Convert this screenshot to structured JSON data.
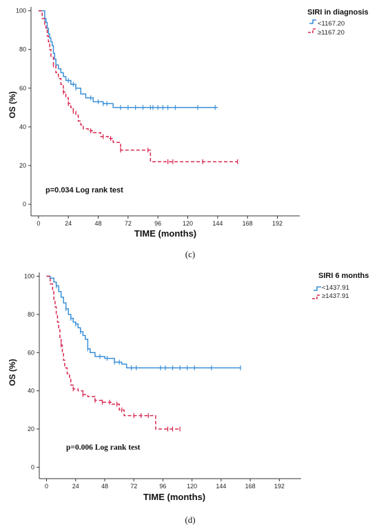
{
  "chart_data": [
    {
      "type": "line",
      "panel_label": "(c)",
      "xlabel": "TIME (months)",
      "ylabel": "OS (%)",
      "xticks": [
        "0",
        "24",
        "48",
        "72",
        "96",
        "120",
        "144",
        "168",
        "192"
      ],
      "yticks": [
        "0",
        "20",
        "40",
        "60",
        "80",
        "100"
      ],
      "xlim": [
        -6,
        210
      ],
      "ylim": [
        -6,
        102
      ],
      "legend_title": "SIRI in diagnosis",
      "annotation": "p=0.034 Log rank test",
      "series": [
        {
          "name": "<1167.20",
          "color": "#3a8fd8",
          "dashed": false,
          "x": [
            0,
            5,
            6,
            7,
            8,
            9,
            10,
            11,
            12,
            13,
            14,
            16,
            18,
            20,
            22,
            26,
            30,
            34,
            38,
            44,
            52,
            60,
            144
          ],
          "y": [
            100,
            96,
            94,
            91,
            88,
            86,
            84,
            82,
            78,
            75,
            72,
            70,
            68,
            66,
            64,
            62,
            60,
            57,
            55,
            53,
            52,
            50,
            50
          ],
          "censor_x": [
            5,
            24,
            28,
            30,
            42,
            48,
            52,
            55,
            66,
            72,
            78,
            84,
            90,
            92,
            96,
            100,
            104,
            110,
            128,
            142
          ]
        },
        {
          "name": "≥1167.20",
          "color": "#d8264e",
          "dashed": true,
          "x": [
            0,
            3,
            5,
            6,
            7,
            8,
            9,
            10,
            12,
            14,
            16,
            18,
            20,
            22,
            24,
            26,
            28,
            30,
            32,
            34,
            36,
            40,
            44,
            50,
            56,
            60,
            66,
            90,
            160
          ],
          "y": [
            100,
            96,
            93,
            90,
            87,
            84,
            80,
            76,
            72,
            68,
            65,
            62,
            58,
            55,
            52,
            50,
            48,
            46,
            43,
            41,
            39,
            38,
            37,
            35,
            34,
            32,
            28,
            22,
            22
          ],
          "censor_x": [
            12,
            20,
            24,
            28,
            42,
            52,
            58,
            66,
            88,
            104,
            108,
            132,
            160
          ]
        }
      ]
    },
    {
      "type": "line",
      "panel_label": "(d)",
      "xlabel": "TIME (months)",
      "ylabel": "OS (%)",
      "xticks": [
        "0",
        "24",
        "48",
        "72",
        "96",
        "120",
        "144",
        "168",
        "192"
      ],
      "yticks": [
        "0",
        "20",
        "40",
        "60",
        "80",
        "100"
      ],
      "xlim": [
        -6,
        210
      ],
      "ylim": [
        -6,
        102
      ],
      "legend_title": "SIRI 6 months",
      "annotation": "p=0.006 Log rank test",
      "series": [
        {
          "name": "<1437.91",
          "color": "#3a8fd8",
          "dashed": false,
          "x": [
            0,
            3,
            6,
            8,
            10,
            12,
            14,
            16,
            18,
            20,
            22,
            24,
            26,
            28,
            30,
            32,
            34,
            36,
            40,
            48,
            56,
            62,
            66,
            160
          ],
          "y": [
            100,
            99,
            97,
            95,
            92,
            89,
            86,
            83,
            80,
            78,
            76,
            75,
            73,
            71,
            69,
            67,
            62,
            60,
            58,
            57,
            55,
            54,
            52,
            52
          ],
          "censor_x": [
            8,
            16,
            20,
            24,
            28,
            34,
            44,
            50,
            56,
            60,
            70,
            74,
            94,
            98,
            104,
            110,
            116,
            122,
            136,
            160
          ]
        },
        {
          "name": "≥1437.91",
          "color": "#d8264e",
          "dashed": true,
          "x": [
            0,
            3,
            5,
            6,
            7,
            8,
            9,
            10,
            11,
            12,
            13,
            14,
            15,
            17,
            19,
            20,
            22,
            26,
            30,
            34,
            40,
            46,
            54,
            60,
            64,
            90,
            110
          ],
          "y": [
            100,
            96,
            92,
            88,
            84,
            80,
            76,
            72,
            68,
            64,
            60,
            56,
            52,
            49,
            46,
            43,
            41,
            40,
            38,
            37,
            35,
            34,
            33,
            30,
            27,
            20,
            20
          ],
          "censor_x": [
            12,
            22,
            30,
            40,
            46,
            52,
            58,
            62,
            72,
            78,
            84,
            100,
            104,
            110
          ]
        }
      ]
    }
  ]
}
